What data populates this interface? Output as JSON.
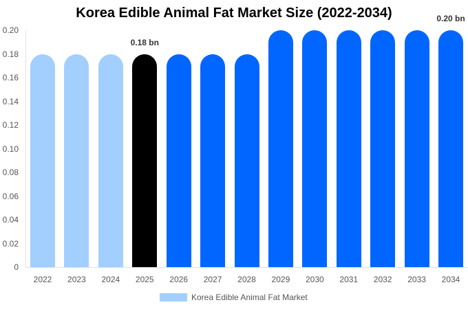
{
  "chart_data": {
    "type": "bar",
    "title": "Korea Edible Animal Fat Market Size (2022-2034)",
    "xlabel": "",
    "ylabel": "",
    "ylim": [
      0,
      0.2
    ],
    "yticks": [
      "0",
      "0.02",
      "0.04",
      "0.06",
      "0.08",
      "0.10",
      "0.12",
      "0.14",
      "0.16",
      "0.18",
      "0.20"
    ],
    "grid": false,
    "legend_position": "bottom",
    "categories": [
      "2022",
      "2023",
      "2024",
      "2025",
      "2026",
      "2027",
      "2028",
      "2029",
      "2030",
      "2031",
      "2032",
      "2033",
      "2034"
    ],
    "series": [
      {
        "name": "Korea Edible Animal Fat Market",
        "values": [
          0.18,
          0.18,
          0.18,
          0.18,
          0.18,
          0.18,
          0.18,
          0.2,
          0.2,
          0.2,
          0.2,
          0.2,
          0.2
        ],
        "colors": [
          "#a3cfff",
          "#a3cfff",
          "#a3cfff",
          "#000000",
          "#0066ff",
          "#0066ff",
          "#0066ff",
          "#0066ff",
          "#0066ff",
          "#0066ff",
          "#0066ff",
          "#0066ff",
          "#0066ff"
        ]
      }
    ],
    "annotations": [
      {
        "category": "2025",
        "text": "0.18 bn"
      },
      {
        "category": "2034",
        "text": "0.20 bn"
      }
    ]
  },
  "colors": {
    "historical": "#a3cfff",
    "base_year": "#000000",
    "forecast": "#0066ff",
    "legend_swatch": "#a3cfff"
  },
  "legend": {
    "label": "Korea Edible Animal Fat Market"
  }
}
